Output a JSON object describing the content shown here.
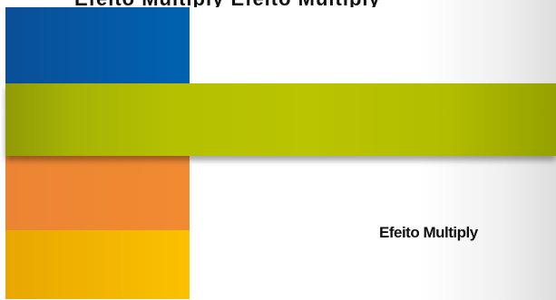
{
  "heading": {
    "text": "Efeito Multiply Efeito Multiply"
  },
  "caption": {
    "text": "Efeito Multiply"
  },
  "colors": {
    "blue": "#0062b2",
    "green": "#bac400",
    "orange": "#f28a32",
    "yellow": "#fcc100"
  }
}
